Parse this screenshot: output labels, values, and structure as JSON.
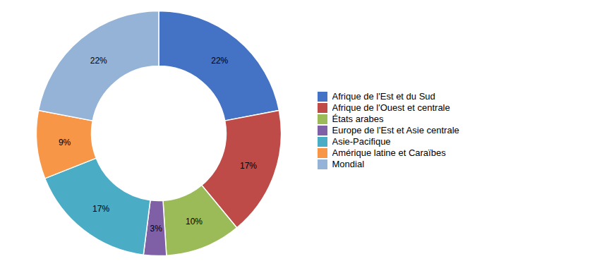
{
  "chart_data": {
    "type": "donut",
    "categories": [
      "Afrique de l'Est et du Sud",
      "Afrique de l'Ouest et centrale",
      "États arabes",
      "Europe de l'Est et Asie centrale",
      "Asie-Pacifique",
      "Amérique latine et Caraïbes",
      "Mondial"
    ],
    "values": [
      22,
      17,
      10,
      3,
      17,
      9,
      22
    ],
    "value_labels": [
      "22%",
      "17%",
      "10%",
      "3%",
      "17%",
      "9%",
      "22%"
    ],
    "colors": [
      "#4472c4",
      "#be4b48",
      "#9bbb59",
      "#7f5fa6",
      "#4bacc6",
      "#f79646",
      "#95b3d7"
    ],
    "data_labels": true,
    "legend": "right"
  }
}
